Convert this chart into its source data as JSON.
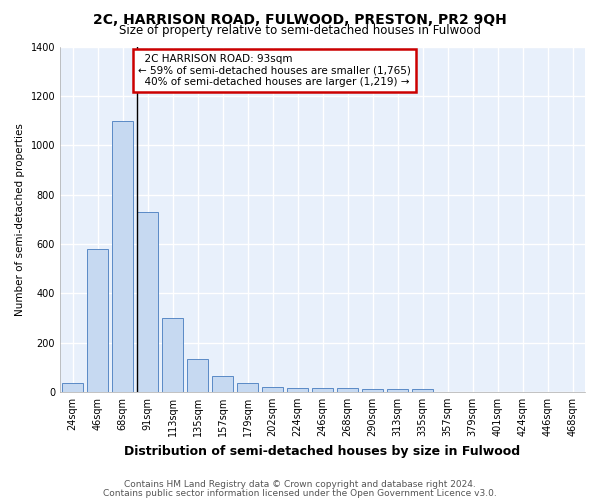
{
  "title": "2C, HARRISON ROAD, FULWOOD, PRESTON, PR2 9QH",
  "subtitle": "Size of property relative to semi-detached houses in Fulwood",
  "xlabel": "Distribution of semi-detached houses by size in Fulwood",
  "ylabel": "Number of semi-detached properties",
  "categories": [
    "24sqm",
    "46sqm",
    "68sqm",
    "91sqm",
    "113sqm",
    "135sqm",
    "157sqm",
    "179sqm",
    "202sqm",
    "224sqm",
    "246sqm",
    "268sqm",
    "290sqm",
    "313sqm",
    "335sqm",
    "357sqm",
    "379sqm",
    "401sqm",
    "424sqm",
    "446sqm",
    "468sqm"
  ],
  "values": [
    35,
    580,
    1100,
    730,
    300,
    135,
    65,
    35,
    20,
    15,
    15,
    15,
    10,
    10,
    10,
    0,
    0,
    0,
    0,
    0,
    0
  ],
  "bar_color": "#c6d9f1",
  "bar_edge_color": "#5a8ac6",
  "property_bar_index": 3,
  "property_label": "2C HARRISON ROAD: 93sqm",
  "pct_smaller": "59% of semi-detached houses are smaller (1,765)",
  "pct_larger": "40% of semi-detached houses are larger (1,219)",
  "annotation_box_color": "#ffffff",
  "annotation_box_edge": "#cc0000",
  "ylim": [
    0,
    1400
  ],
  "yticks": [
    0,
    200,
    400,
    600,
    800,
    1000,
    1200,
    1400
  ],
  "footer1": "Contains HM Land Registry data © Crown copyright and database right 2024.",
  "footer2": "Contains public sector information licensed under the Open Government Licence v3.0.",
  "bg_color": "#ffffff",
  "plot_bg_color": "#e8f0fb",
  "grid_color": "#ffffff",
  "title_fontsize": 10,
  "subtitle_fontsize": 8.5,
  "xlabel_fontsize": 9,
  "ylabel_fontsize": 7.5,
  "tick_fontsize": 7,
  "footer_fontsize": 6.5,
  "ann_fontsize": 7.5
}
